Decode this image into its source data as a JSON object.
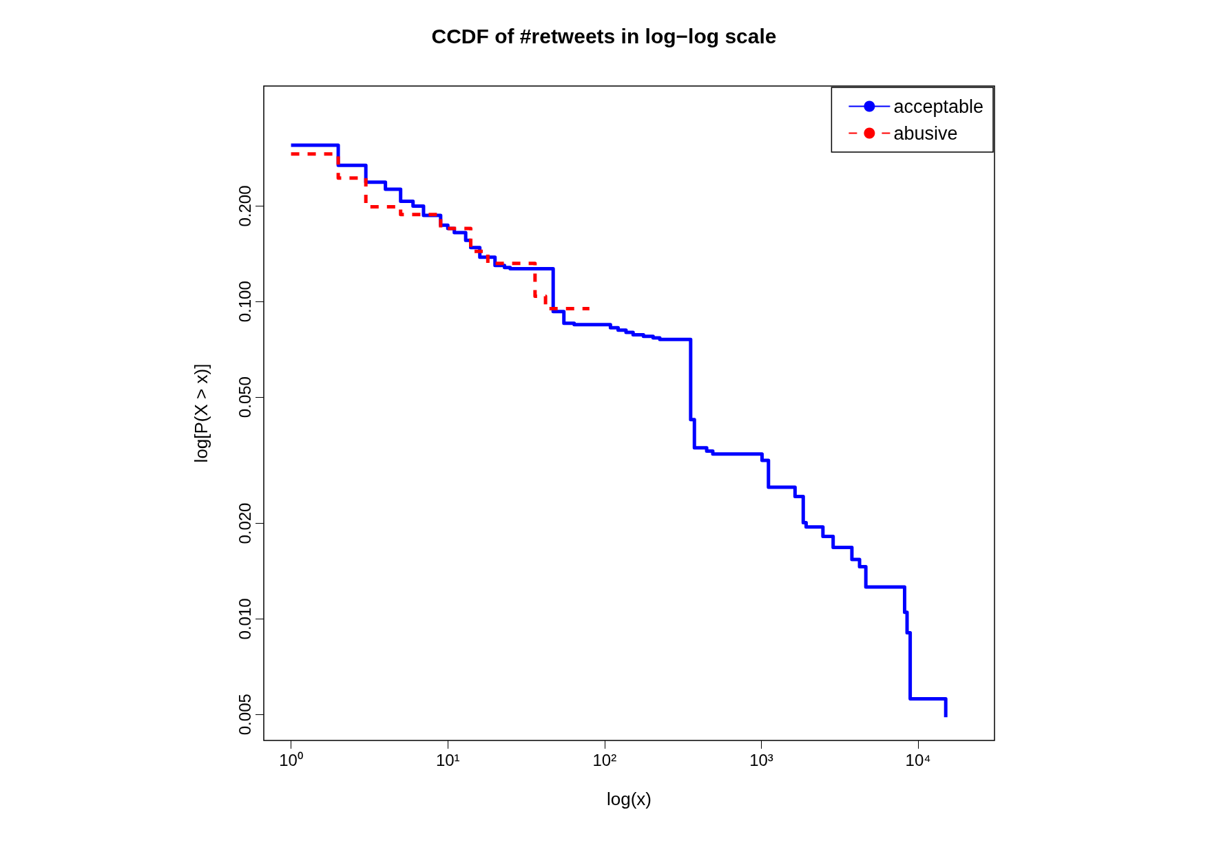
{
  "chart_data": {
    "type": "step",
    "title": "CCDF of #retweets in log−log scale",
    "xlabel": "log(x)",
    "ylabel": "log[P(X > x)]",
    "log": "xy",
    "grid": false,
    "legend": "top right",
    "marker": "none",
    "xlim": [
      0.67,
      30700
    ],
    "ylim": [
      0.00414,
      0.478
    ],
    "xticks": [
      {
        "value": 1,
        "label": "10⁰"
      },
      {
        "value": 10,
        "label": "10¹"
      },
      {
        "value": 100,
        "label": "10²"
      },
      {
        "value": 1000,
        "label": "10³"
      },
      {
        "value": 10000,
        "label": "10⁴"
      }
    ],
    "yticks": [
      {
        "value": 0.005,
        "label": "0.005"
      },
      {
        "value": 0.01,
        "label": "0.010"
      },
      {
        "value": 0.02,
        "label": "0.020"
      },
      {
        "value": 0.05,
        "label": "0.050"
      },
      {
        "value": 0.1,
        "label": "0.100"
      },
      {
        "value": 0.2,
        "label": "0.200"
      }
    ],
    "series": [
      {
        "name": "acceptable",
        "color": "#0000ff",
        "line_style": "solid",
        "x": [
          1,
          2,
          3,
          4,
          5,
          6,
          7,
          9,
          10,
          11,
          13,
          14,
          16,
          20,
          23,
          25,
          47,
          55,
          64,
          109,
          122,
          137,
          152,
          177,
          204,
          225,
          354,
          374,
          448,
          490,
          1010,
          1110,
          1640,
          1850,
          1930,
          2470,
          2870,
          3780,
          4230,
          4640,
          8200,
          8500,
          8900,
          15000
        ],
        "values": [
          0.311,
          0.269,
          0.238,
          0.226,
          0.207,
          0.2,
          0.187,
          0.174,
          0.17,
          0.165,
          0.156,
          0.148,
          0.138,
          0.13,
          0.128,
          0.127,
          0.093,
          0.0855,
          0.0846,
          0.0827,
          0.0813,
          0.08,
          0.0786,
          0.0777,
          0.0769,
          0.076,
          0.0425,
          0.0346,
          0.0338,
          0.0331,
          0.0316,
          0.026,
          0.0243,
          0.0201,
          0.0195,
          0.0182,
          0.0168,
          0.0154,
          0.0146,
          0.0126,
          0.0105,
          0.00904,
          0.0056,
          0.0049
        ]
      },
      {
        "name": "abusive",
        "color": "#ff0000",
        "line_style": "dashed",
        "x": [
          1,
          2,
          3,
          5,
          9,
          14,
          18,
          36,
          42,
          80
        ],
        "values": [
          0.292,
          0.245,
          0.199,
          0.188,
          0.17,
          0.144,
          0.132,
          0.104,
          0.095,
          0.095
        ]
      }
    ]
  }
}
